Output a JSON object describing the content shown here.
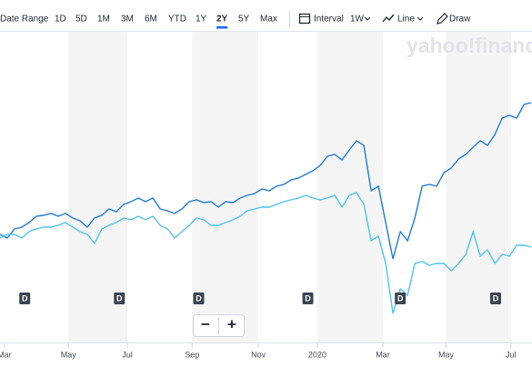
{
  "toolbar": {
    "date_range": "Date Range",
    "ranges": [
      "1D",
      "5D",
      "1M",
      "3M",
      "6M",
      "YTD",
      "1Y",
      "2Y",
      "5Y",
      "Max"
    ],
    "selected_range": 7,
    "interval_label": "Interval",
    "interval": "1W",
    "chart_style": "Line",
    "draw": "Draw"
  },
  "watermark": "yahoo!finance",
  "zoom": {
    "minus": "−",
    "plus": "+"
  },
  "chart_data": {
    "type": "line",
    "x": [
      0,
      1,
      2,
      3,
      4,
      5,
      6,
      7,
      8,
      9,
      10,
      11,
      12,
      13,
      14,
      15,
      16,
      17,
      18,
      19,
      20,
      21,
      22,
      23,
      24,
      25,
      26,
      27,
      28,
      29,
      30,
      31,
      32,
      33,
      34,
      35,
      36,
      37,
      38,
      39,
      40,
      41,
      42,
      43,
      44,
      45,
      46,
      47,
      48,
      49,
      50,
      51,
      52,
      53,
      54,
      55,
      56,
      57,
      58,
      59,
      60,
      61,
      62,
      63,
      64,
      65,
      66,
      67,
      68,
      69,
      70,
      71,
      72,
      73
    ],
    "xlim": [
      0,
      73.1
    ],
    "xticks": [
      {
        "value": 0.6,
        "label": "Mar"
      },
      {
        "value": 9.4,
        "label": "May"
      },
      {
        "value": 17.5,
        "label": "Jul"
      },
      {
        "value": 26.4,
        "label": "Sep"
      },
      {
        "value": 35.5,
        "label": "Nov"
      },
      {
        "value": 43.6,
        "label": "2020"
      },
      {
        "value": 52.6,
        "label": "Mar"
      },
      {
        "value": 61.3,
        "label": "May"
      },
      {
        "value": 70.2,
        "label": "Jul"
      }
    ],
    "ylim": [
      0,
      340
    ],
    "series": [
      {
        "color": "#1f7ad6",
        "values": [
          117,
          113,
          123,
          125,
          130,
          137,
          138,
          140,
          137,
          140,
          135,
          132,
          125,
          135,
          138,
          145,
          142,
          150,
          153,
          157,
          153,
          157,
          145,
          143,
          140,
          145,
          153,
          155,
          152,
          153,
          147,
          153,
          152,
          157,
          160,
          162,
          167,
          165,
          170,
          172,
          177,
          179,
          183,
          187,
          193,
          203,
          205,
          199,
          210,
          220,
          215,
          165,
          170,
          130,
          90,
          120,
          110,
          135,
          170,
          172,
          170,
          185,
          190,
          200,
          205,
          213,
          220,
          215,
          227,
          245,
          248,
          245,
          260,
          262
        ]
      },
      {
        "color": "#4fc3f0",
        "values": [
          113,
          117,
          117,
          113,
          120,
          123,
          125,
          125,
          127,
          130,
          125,
          120,
          117,
          107,
          123,
          127,
          130,
          135,
          133,
          137,
          133,
          137,
          127,
          123,
          113,
          120,
          127,
          135,
          133,
          127,
          127,
          130,
          133,
          137,
          143,
          145,
          147,
          147,
          150,
          153,
          155,
          157,
          160,
          157,
          155,
          157,
          160,
          147,
          160,
          163,
          150,
          110,
          115,
          85,
          30,
          57,
          50,
          85,
          87,
          83,
          85,
          85,
          77,
          85,
          95,
          120,
          93,
          100,
          85,
          95,
          93,
          105,
          105,
          103
        ]
      }
    ],
    "markers": [
      {
        "x": 3.4,
        "label": "D"
      },
      {
        "x": 16.4,
        "label": "D"
      },
      {
        "x": 27.3,
        "label": "D"
      },
      {
        "x": 42.3,
        "label": "D"
      },
      {
        "x": 55.0,
        "label": "D"
      },
      {
        "x": 68.1,
        "label": "D"
      }
    ]
  }
}
